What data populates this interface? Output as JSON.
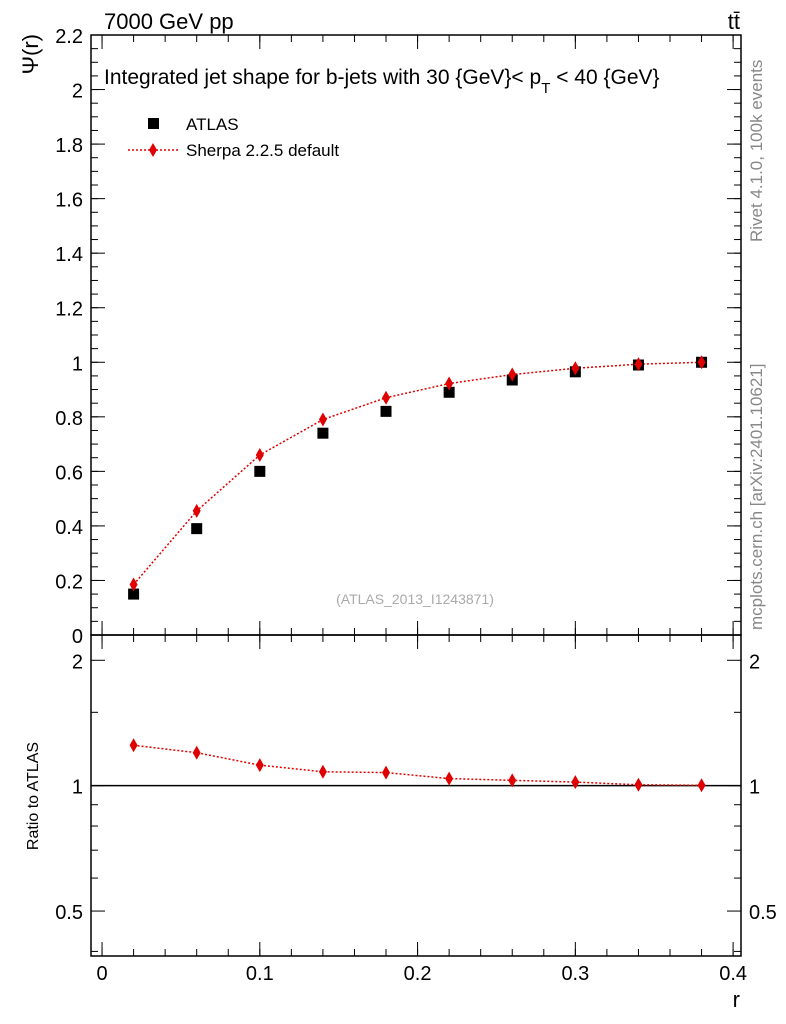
{
  "header": {
    "energy_label": "7000 GeV pp",
    "process_label": "tt̄",
    "side_label_top": "Rivet 4.1.0,  100k events",
    "side_label_bottom": "mcplots.cern.ch [arXiv:2401.10621]",
    "analysis_id": "(ATLAS_2013_I1243871)"
  },
  "chart_data": [
    {
      "type": "scatter",
      "panel": "main",
      "title_main": "Integrated jet shape for b-jets with 30 {GeV}< p",
      "title_sub": "T",
      "title_tail": " < 40 {GeV}",
      "xlabel": "r",
      "ylabel": "Ψ(r)",
      "xlim": [
        -0.007,
        0.405
      ],
      "ylim": [
        0,
        2.2
      ],
      "x_ticks": [
        "0",
        "0.1",
        "0.2",
        "0.3",
        "0.4"
      ],
      "y_ticks": [
        "0",
        "0.2",
        "0.4",
        "0.6",
        "0.8",
        "1",
        "1.2",
        "1.4",
        "1.6",
        "1.8",
        "2",
        "2.2"
      ],
      "legend_position": "top-left",
      "x": [
        0.02,
        0.06,
        0.1,
        0.14,
        0.18,
        0.22,
        0.26,
        0.3,
        0.34,
        0.38
      ],
      "series": [
        {
          "name": "ATLAS",
          "marker": "square",
          "color": "#000000",
          "values": [
            0.15,
            0.39,
            0.6,
            0.74,
            0.82,
            0.89,
            0.935,
            0.965,
            0.99,
            1.0
          ]
        },
        {
          "name": "Sherpa 2.2.5 default",
          "marker": "diamond",
          "line": "dotted",
          "color": "#e00000",
          "values": [
            0.185,
            0.455,
            0.66,
            0.79,
            0.87,
            0.922,
            0.955,
            0.978,
            0.993,
            1.0
          ]
        }
      ]
    },
    {
      "type": "line",
      "panel": "ratio",
      "ylabel": "Ratio to ATLAS",
      "ylim": [
        0.39,
        2.3
      ],
      "y_scale": "log",
      "y_ticks": [
        "0.5",
        "1",
        "2"
      ],
      "reference_line": 1,
      "x": [
        0.02,
        0.06,
        0.1,
        0.14,
        0.18,
        0.22,
        0.26,
        0.3,
        0.34,
        0.38
      ],
      "series": [
        {
          "name": "Sherpa 2.2.5 default",
          "marker": "diamond",
          "line": "dotted",
          "color": "#e00000",
          "values": [
            1.25,
            1.2,
            1.12,
            1.08,
            1.075,
            1.04,
            1.03,
            1.02,
            1.005,
            1.002
          ]
        }
      ]
    }
  ]
}
